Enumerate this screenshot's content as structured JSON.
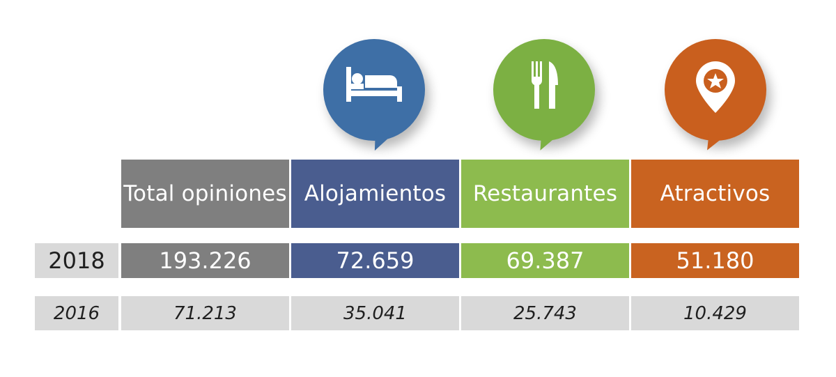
{
  "chart_data": {
    "type": "table",
    "columns": [
      "Total opiniones",
      "Alojamientos",
      "Restaurantes",
      "Atractivos"
    ],
    "rows": [
      {
        "label": "2018",
        "values": [
          "193.226",
          "72.659",
          "69.387",
          "51.180"
        ]
      },
      {
        "label": "2016",
        "values": [
          "71.213",
          "35.041",
          "25.743",
          "10.429"
        ]
      }
    ]
  },
  "colors": {
    "total": "#7f7f7f",
    "alojamientos_header": "#4a5d8f",
    "alojamientos_bubble": "#3e6fa6",
    "restaurantes": "#8dbb4e",
    "restaurantes_bubble": "#7cb043",
    "atractivos": "#c96320",
    "atractivos_bubble": "#c95f1e",
    "row_label_bg": "#d9d9d9"
  },
  "icons": {
    "alojamientos": "bed-icon",
    "restaurantes": "fork-knife-icon",
    "atractivos": "star-map-pin-icon"
  }
}
